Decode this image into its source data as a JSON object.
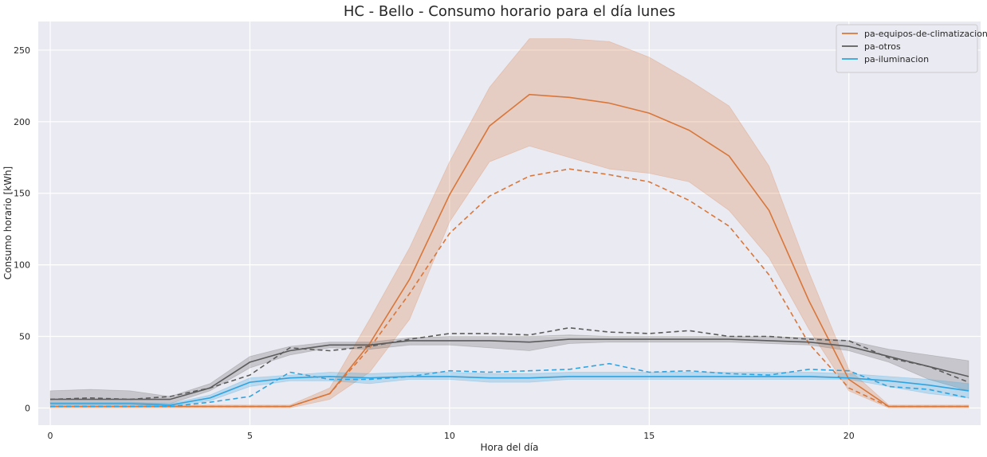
{
  "chart_data": {
    "type": "line",
    "title": "HC - Bello - Consumo horario para el día lunes",
    "xlabel": "Hora del día",
    "ylabel": "Consumo horario [kWh]",
    "xlim": [
      -0.3,
      23.3
    ],
    "ylim": [
      -12,
      270
    ],
    "xticks": [
      0,
      5,
      10,
      15,
      20
    ],
    "yticks": [
      0,
      50,
      100,
      150,
      200,
      250
    ],
    "grid": true,
    "legend_position": "top-right",
    "x": [
      0,
      1,
      2,
      3,
      4,
      5,
      6,
      7,
      8,
      9,
      10,
      11,
      12,
      13,
      14,
      15,
      16,
      17,
      18,
      19,
      20,
      21,
      22,
      23
    ],
    "series": [
      {
        "name": "pa-equipos-de-climatizacion",
        "color": "#d9773a",
        "mean": [
          1,
          1,
          1,
          1,
          1,
          1,
          1,
          10,
          45,
          90,
          149,
          197,
          219,
          217,
          213,
          206,
          194,
          176,
          138,
          75,
          20,
          1,
          1,
          1
        ],
        "lower": [
          0,
          0,
          0,
          0,
          0,
          0,
          0,
          6,
          25,
          62,
          130,
          172,
          183,
          175,
          167,
          164,
          158,
          138,
          105,
          55,
          12,
          0,
          0,
          0
        ],
        "upper": [
          2,
          2,
          2,
          2,
          2,
          2,
          2,
          14,
          62,
          112,
          172,
          224,
          258,
          258,
          256,
          245,
          229,
          211,
          169,
          95,
          27,
          2,
          2,
          2
        ],
        "median": [
          1,
          1,
          1,
          1,
          1,
          1,
          1,
          10,
          42,
          80,
          122,
          148,
          162,
          167,
          163,
          158,
          145,
          127,
          93,
          45,
          14,
          1,
          1,
          1
        ]
      },
      {
        "name": "pa-otros",
        "color": "#5c5c5c",
        "mean": [
          6,
          6,
          6,
          6,
          14,
          32,
          40,
          44,
          44,
          47,
          47,
          47,
          46,
          48,
          48,
          48,
          48,
          48,
          47,
          46,
          43,
          36,
          29,
          22
        ],
        "lower": [
          3,
          3,
          3,
          3,
          12,
          28,
          37,
          42,
          41,
          44,
          44,
          42,
          40,
          45,
          46,
          46,
          46,
          46,
          45,
          44,
          40,
          32,
          20,
          12
        ],
        "upper": [
          12,
          13,
          12,
          8,
          17,
          36,
          43,
          46,
          46,
          49,
          50,
          50,
          50,
          51,
          50,
          50,
          50,
          50,
          50,
          49,
          47,
          41,
          37,
          33
        ],
        "median": [
          6,
          7,
          6,
          8,
          14,
          23,
          42,
          40,
          43,
          48,
          52,
          52,
          51,
          56,
          53,
          52,
          54,
          50,
          50,
          48,
          47,
          35,
          29,
          18
        ]
      },
      {
        "name": "pa-iluminacion",
        "color": "#2fa4e0",
        "mean": [
          3,
          3,
          3,
          2,
          7,
          18,
          21,
          22,
          21,
          22,
          22,
          21,
          21,
          22,
          22,
          22,
          22,
          22,
          22,
          22,
          21,
          19,
          16,
          12
        ],
        "lower": [
          2,
          2,
          2,
          1,
          5,
          15,
          19,
          19,
          17,
          20,
          20,
          18,
          18,
          20,
          20,
          20,
          20,
          20,
          20,
          20,
          20,
          15,
          10,
          7
        ],
        "upper": [
          4,
          4,
          4,
          3,
          9,
          21,
          23,
          25,
          24,
          25,
          25,
          24,
          24,
          25,
          25,
          25,
          25,
          25,
          25,
          25,
          24,
          22,
          20,
          17
        ],
        "median": [
          1,
          1,
          1,
          1,
          4,
          8,
          25,
          20,
          20,
          22,
          26,
          25,
          26,
          27,
          31,
          25,
          26,
          24,
          23,
          27,
          26,
          15,
          13,
          7
        ]
      }
    ]
  }
}
